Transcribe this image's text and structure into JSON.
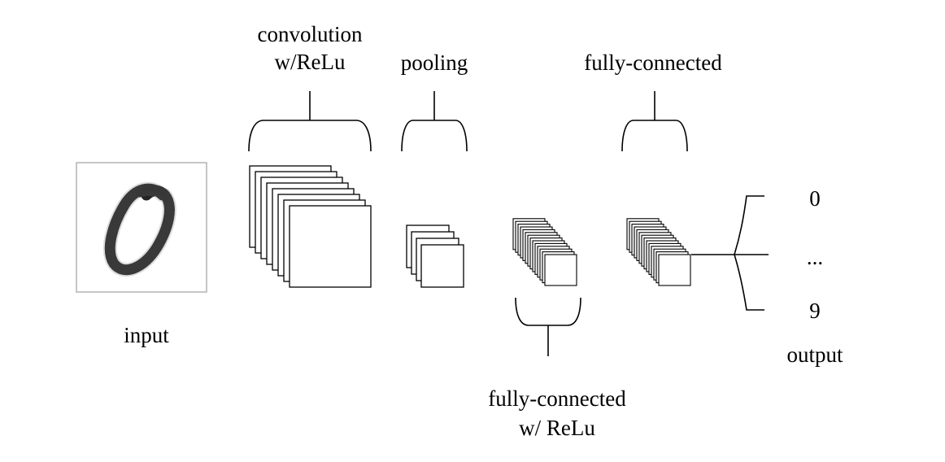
{
  "labels": {
    "conv_line1": "convolution",
    "conv_line2": "w/ReLu",
    "pooling": "pooling",
    "fc_top": "fully-connected",
    "input": "input",
    "fc_relu_line1": "fully-connected",
    "fc_relu_line2": "w/ ReLu",
    "output_0": "0",
    "output_dots": "...",
    "output_9": "9",
    "output": "output"
  },
  "input_image": {
    "digit": "0",
    "icon": "handwritten-digit-zero"
  },
  "layers": {
    "convolution_maps": 8,
    "pooling_maps": 4,
    "fc_relu_units": 14,
    "fc_units": 14
  },
  "colors": {
    "stroke": "#000000",
    "background": "#ffffff",
    "input_border": "#b3b3b3"
  }
}
